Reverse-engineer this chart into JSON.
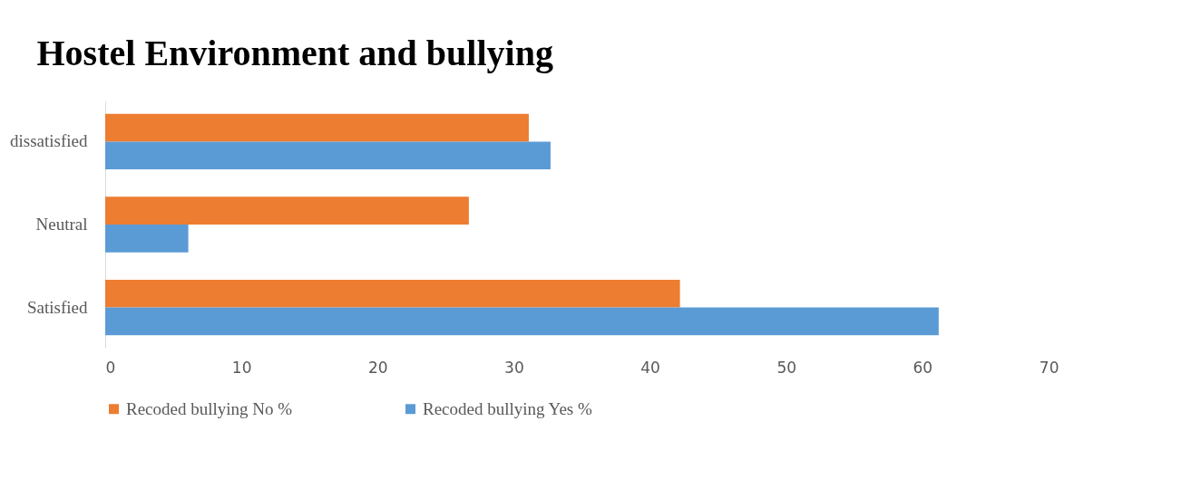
{
  "chart_data": {
    "type": "bar",
    "orientation": "horizontal",
    "title": "Hostel Environment and bullying",
    "categories": [
      "dissatisfied",
      "Neutral",
      "Satisfied"
    ],
    "series": [
      {
        "name": "Recoded bullying No %",
        "color": "#ed7d31",
        "values": [
          31.1,
          26.7,
          42.2
        ]
      },
      {
        "name": "Recoded bullying Yes %",
        "color": "#5b9bd5",
        "values": [
          32.7,
          6.1,
          61.2
        ]
      }
    ],
    "xlim": [
      0,
      70
    ],
    "xticks": [
      0,
      10,
      20,
      30,
      40,
      50,
      60,
      70
    ],
    "grid": false,
    "legend": "bottom"
  }
}
